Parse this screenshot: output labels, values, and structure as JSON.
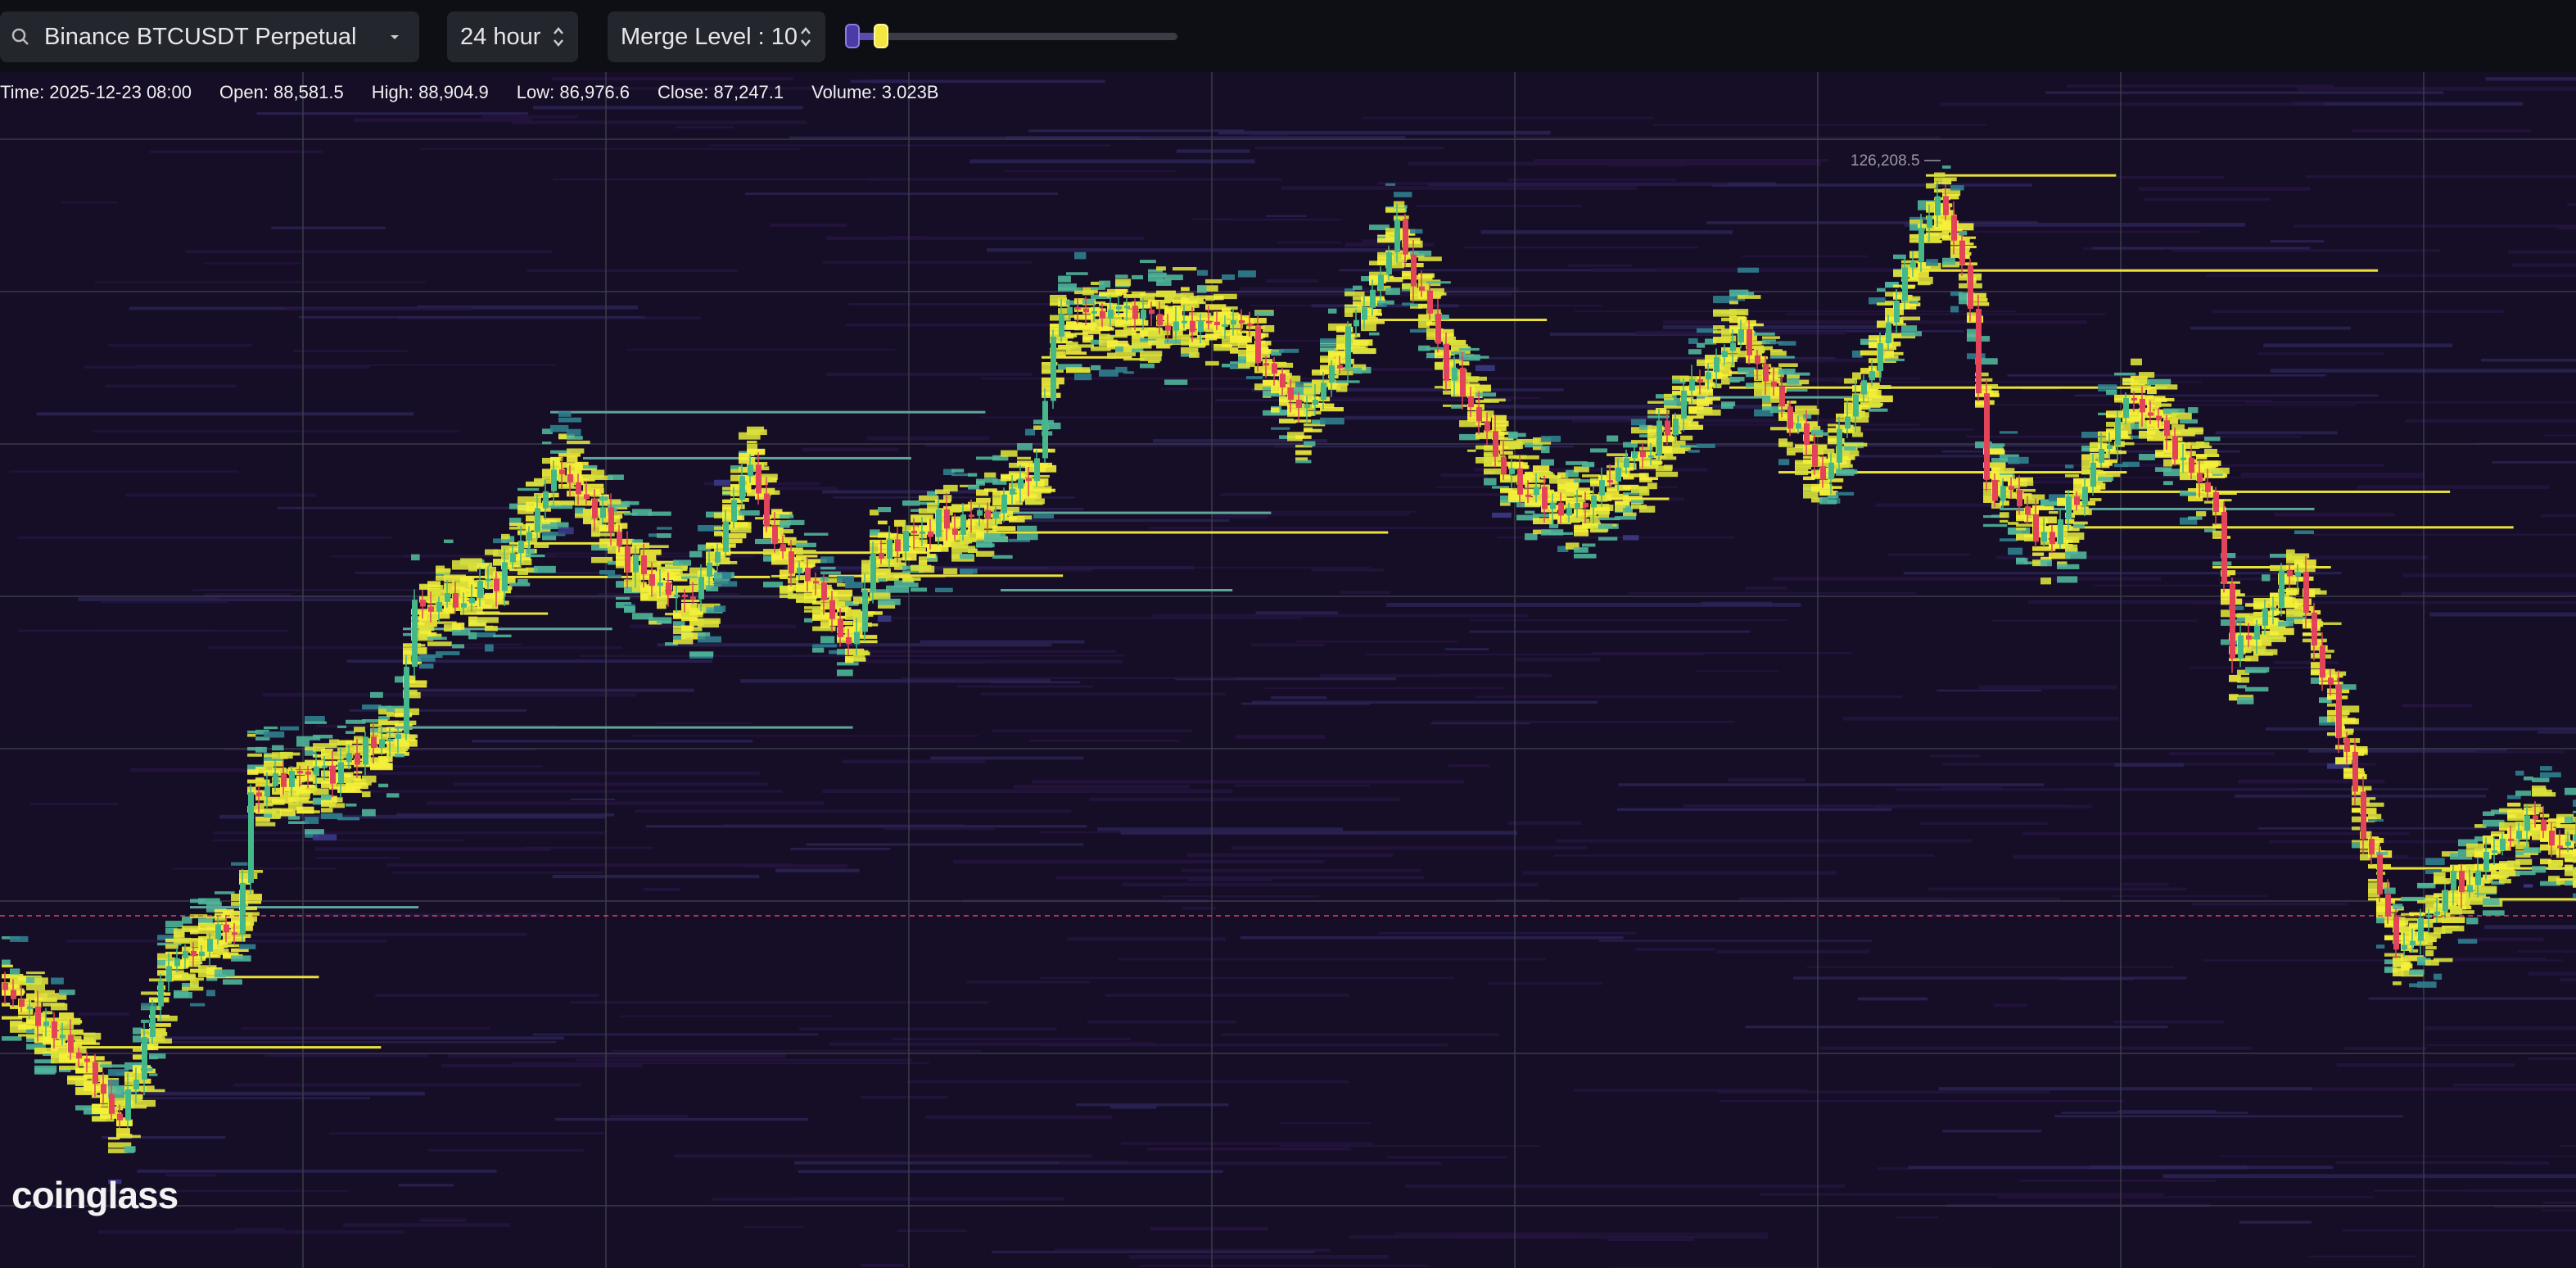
{
  "toolbar": {
    "symbol": "Binance BTCUSDT Perpetual",
    "range": "24 hour",
    "merge_level": "Merge Level : 10"
  },
  "info": {
    "time": "Time: 2025-12-23 08:00",
    "open": "Open: 88,581.5",
    "high": "High: 88,904.9",
    "low": "Low: 86,976.6",
    "close": "Close: 87,247.1",
    "volume": "Volume: 3.023B"
  },
  "annotations": {
    "high_marker": "126,208.5"
  },
  "watermark": "coinglass"
}
